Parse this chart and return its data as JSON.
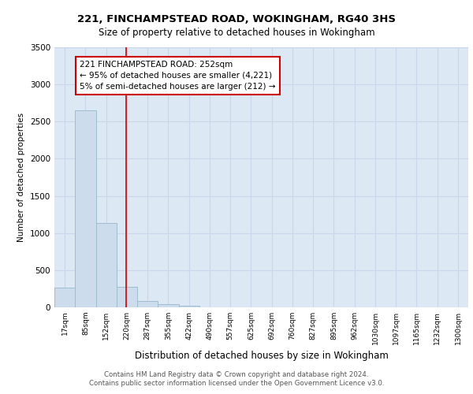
{
  "title_line1": "221, FINCHAMPSTEAD ROAD, WOKINGHAM, RG40 3HS",
  "title_line2": "Size of property relative to detached houses in Wokingham",
  "xlabel": "Distribution of detached houses by size in Wokingham",
  "ylabel": "Number of detached properties",
  "footer_line1": "Contains HM Land Registry data © Crown copyright and database right 2024.",
  "footer_line2": "Contains public sector information licensed under the Open Government Licence v3.0.",
  "bar_edges": [
    17,
    85,
    152,
    220,
    287,
    355,
    422,
    490,
    557,
    625,
    692,
    760,
    827,
    895,
    962,
    1030,
    1097,
    1165,
    1232,
    1300,
    1367
  ],
  "bar_heights": [
    270,
    2650,
    1140,
    275,
    80,
    45,
    20,
    0,
    0,
    0,
    0,
    0,
    0,
    0,
    0,
    0,
    0,
    0,
    0,
    0
  ],
  "bar_color": "#ccdcec",
  "bar_edgecolor": "#a0bcd0",
  "grid_color": "#c8d8ea",
  "vline_x": 252,
  "vline_color": "#cc0000",
  "ylim": [
    0,
    3500
  ],
  "yticks": [
    0,
    500,
    1000,
    1500,
    2000,
    2500,
    3000,
    3500
  ],
  "annotation_text": "221 FINCHAMPSTEAD ROAD: 252sqm\n← 95% of detached houses are smaller (4,221)\n5% of semi-detached houses are larger (212) →",
  "annotation_box_facecolor": "#ffffff",
  "annotation_box_edgecolor": "#cc0000",
  "bg_color": "#dce8f4",
  "fig_bg_color": "#ffffff"
}
